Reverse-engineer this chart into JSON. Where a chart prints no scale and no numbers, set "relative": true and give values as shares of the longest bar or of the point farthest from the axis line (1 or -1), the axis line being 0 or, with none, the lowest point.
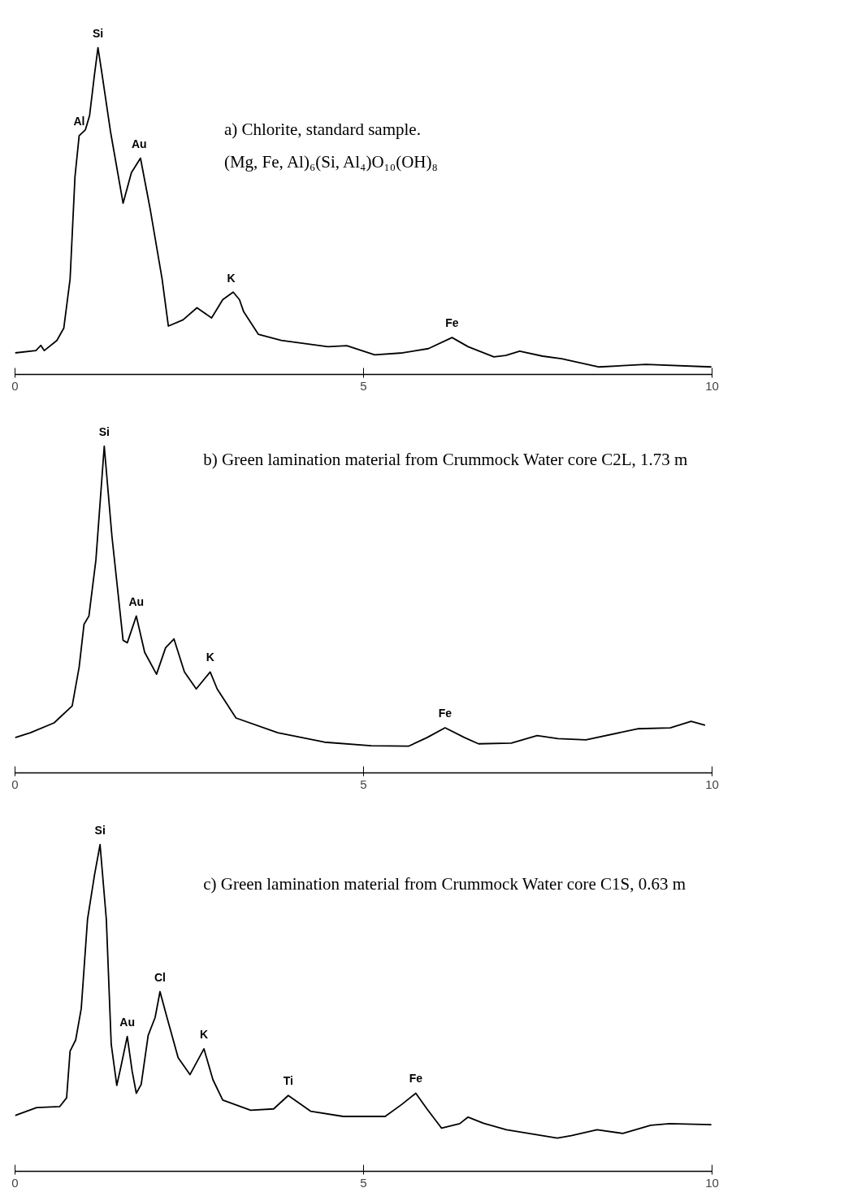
{
  "chart_data": [
    {
      "type": "line",
      "title": "a) Chlorite, standard sample.",
      "relative": true,
      "xlim": [
        0,
        10
      ],
      "xticks": [
        0,
        5,
        10
      ],
      "annotations": [
        "(Mg, Fe, Al)₆(Si, Al₄)O₁₀(OH)₈",
        {
          "text": "Al",
          "x": 0.92,
          "y": 0.731
        },
        {
          "text": "Si",
          "x": 1.19,
          "y": 1.0
        },
        {
          "text": "Au",
          "x": 1.78,
          "y": 0.66
        },
        {
          "text": "K",
          "x": 3.1,
          "y": 0.25
        },
        {
          "text": "Fe",
          "x": 6.27,
          "y": 0.113
        }
      ],
      "series": [
        {
          "color": "#000000",
          "x": [
            0,
            0.3,
            0.37,
            0.42,
            0.6,
            0.7,
            0.79,
            0.86,
            0.92,
            1.01,
            1.07,
            1.14,
            1.19,
            1.24,
            1.37,
            1.55,
            1.67,
            1.8,
            1.94,
            2.11,
            2.2,
            2.41,
            2.61,
            2.82,
            2.98,
            3.13,
            3.22,
            3.28,
            3.49,
            3.82,
            4.49,
            4.76,
            5.16,
            5.56,
            5.93,
            6.27,
            6.5,
            6.87,
            7.04,
            7.24,
            7.57,
            7.84,
            8.38,
            9.05,
            9.99
          ],
          "values": [
            0.066,
            0.073,
            0.089,
            0.073,
            0.104,
            0.142,
            0.292,
            0.605,
            0.731,
            0.749,
            0.793,
            0.918,
            1.0,
            0.931,
            0.743,
            0.524,
            0.618,
            0.662,
            0.505,
            0.292,
            0.148,
            0.167,
            0.204,
            0.173,
            0.229,
            0.252,
            0.229,
            0.192,
            0.123,
            0.104,
            0.085,
            0.088,
            0.06,
            0.066,
            0.079,
            0.113,
            0.085,
            0.054,
            0.058,
            0.071,
            0.056,
            0.048,
            0.023,
            0.031,
            0.023
          ]
        }
      ]
    },
    {
      "type": "line",
      "title": "b) Green lamination material from Crummock Water core C2L, 1.73 m",
      "relative": true,
      "xlim": [
        0,
        10
      ],
      "xticks": [
        0,
        5,
        10
      ],
      "annotations": [
        {
          "text": "Si",
          "x": 1.28,
          "y": 1.0
        },
        {
          "text": "Au",
          "x": 1.74,
          "y": 0.48
        },
        {
          "text": "K",
          "x": 2.8,
          "y": 0.309
        },
        {
          "text": "Fe",
          "x": 6.17,
          "y": 0.138
        }
      ],
      "series": [
        {
          "color": "#000000",
          "x": [
            0,
            0.22,
            0.56,
            0.82,
            0.92,
            0.99,
            1.06,
            1.16,
            1.28,
            1.39,
            1.55,
            1.61,
            1.74,
            1.86,
            2.03,
            2.16,
            2.28,
            2.43,
            2.6,
            2.8,
            2.9,
            3.17,
            3.77,
            4.44,
            5.11,
            5.65,
            5.91,
            6.17,
            6.45,
            6.65,
            7.12,
            7.49,
            7.79,
            8.19,
            8.93,
            9.4,
            9.7,
            9.9
          ],
          "values": [
            0.108,
            0.123,
            0.153,
            0.205,
            0.324,
            0.455,
            0.48,
            0.651,
            1.0,
            0.725,
            0.406,
            0.398,
            0.48,
            0.369,
            0.302,
            0.383,
            0.41,
            0.309,
            0.257,
            0.309,
            0.257,
            0.168,
            0.123,
            0.094,
            0.083,
            0.082,
            0.108,
            0.138,
            0.108,
            0.089,
            0.091,
            0.114,
            0.105,
            0.101,
            0.135,
            0.138,
            0.158,
            0.146
          ]
        }
      ]
    },
    {
      "type": "line",
      "title": "c) Green lamination material from Crummock Water core C1S, 0.63 m",
      "relative": true,
      "xlim": [
        0,
        10
      ],
      "xticks": [
        0,
        5,
        10
      ],
      "annotations": [
        {
          "text": "Si",
          "x": 1.22,
          "y": 1.0
        },
        {
          "text": "Au",
          "x": 1.61,
          "y": 0.413
        },
        {
          "text": "Cl",
          "x": 2.08,
          "y": 0.55
        },
        {
          "text": "K",
          "x": 2.71,
          "y": 0.375
        },
        {
          "text": "Ti",
          "x": 3.92,
          "y": 0.232
        },
        {
          "text": "Fe",
          "x": 5.75,
          "y": 0.239
        }
      ],
      "series": [
        {
          "color": "#000000",
          "x": [
            0,
            0.31,
            0.64,
            0.74,
            0.79,
            0.87,
            0.95,
            1.04,
            1.14,
            1.22,
            1.31,
            1.38,
            1.46,
            1.52,
            1.61,
            1.68,
            1.74,
            1.81,
            1.91,
            2.01,
            2.08,
            2.18,
            2.34,
            2.51,
            2.71,
            2.84,
            2.98,
            3.38,
            3.71,
            3.92,
            4.24,
            4.71,
            5.31,
            5.55,
            5.75,
            5.91,
            6.12,
            6.38,
            6.5,
            6.72,
            7.05,
            7.78,
            7.98,
            8.35,
            8.72,
            9.12,
            9.39,
            9.99
          ],
          "values": [
            0.171,
            0.195,
            0.198,
            0.225,
            0.368,
            0.402,
            0.498,
            0.771,
            0.907,
            1.0,
            0.771,
            0.389,
            0.263,
            0.321,
            0.413,
            0.307,
            0.239,
            0.266,
            0.416,
            0.471,
            0.55,
            0.471,
            0.348,
            0.296,
            0.375,
            0.28,
            0.218,
            0.187,
            0.191,
            0.232,
            0.184,
            0.168,
            0.168,
            0.205,
            0.239,
            0.191,
            0.132,
            0.146,
            0.166,
            0.147,
            0.127,
            0.102,
            0.109,
            0.127,
            0.116,
            0.141,
            0.146,
            0.143
          ]
        }
      ]
    }
  ]
}
